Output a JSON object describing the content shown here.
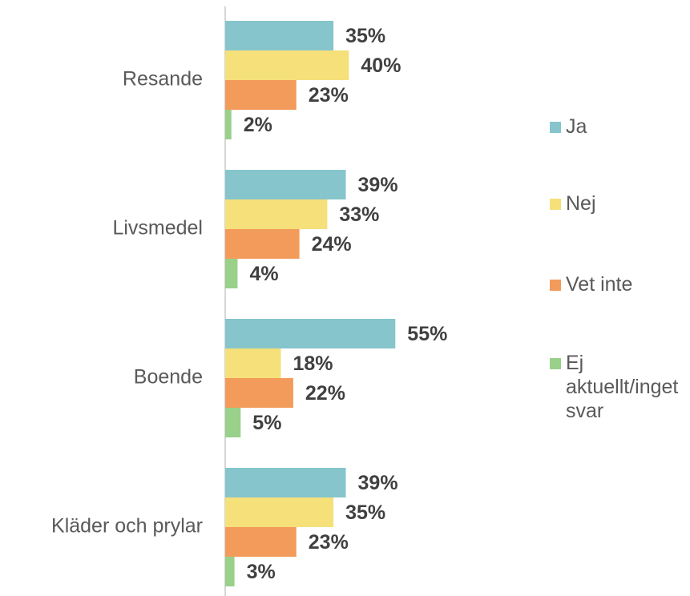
{
  "chart_data": {
    "type": "bar",
    "orientation": "horizontal",
    "categories": [
      "Resande",
      "Livsmedel",
      "Boende",
      "Kläder och prylar"
    ],
    "series": [
      {
        "name": "Ja",
        "color": "#86c5cc",
        "values": [
          35,
          39,
          55,
          39
        ],
        "value_labels": [
          "35%",
          "39%",
          "55%",
          "39%"
        ]
      },
      {
        "name": "Nej",
        "color": "#f5e07a",
        "values": [
          40,
          33,
          18,
          35
        ],
        "value_labels": [
          "40%",
          "33%",
          "18%",
          "35%"
        ]
      },
      {
        "name": "Vet inte",
        "color": "#f39b5a",
        "values": [
          23,
          24,
          22,
          23
        ],
        "value_labels": [
          "23%",
          "24%",
          "22%",
          "23%"
        ]
      },
      {
        "name": "Ej aktuellt/inget svar",
        "color": "#99d08a",
        "values": [
          2,
          4,
          5,
          3
        ],
        "value_labels": [
          "2%",
          "4%",
          "5%",
          "3%"
        ]
      }
    ],
    "legend": "right"
  }
}
